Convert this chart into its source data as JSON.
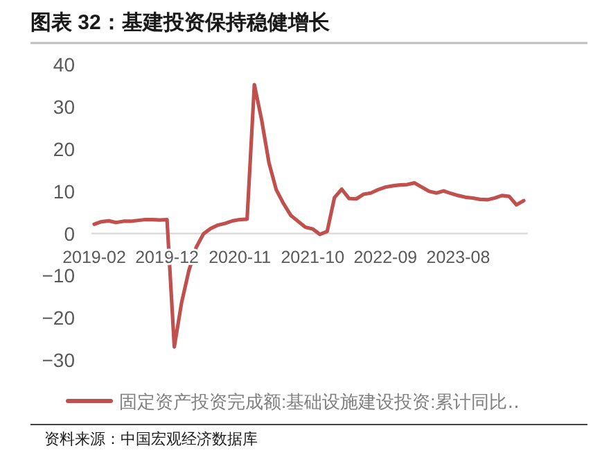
{
  "chart_data": {
    "type": "line",
    "title": "图表 32：基建投资保持稳健增长",
    "categories": [
      "2019-02",
      null,
      null,
      null,
      null,
      null,
      null,
      null,
      null,
      null,
      "2019-12",
      null,
      null,
      null,
      null,
      null,
      null,
      null,
      null,
      null,
      "2020-11",
      null,
      null,
      null,
      null,
      null,
      null,
      null,
      null,
      null,
      "2021-10",
      null,
      null,
      null,
      null,
      null,
      null,
      null,
      null,
      null,
      "2022-09",
      null,
      null,
      null,
      null,
      null,
      null,
      null,
      null,
      null,
      "2023-08",
      null,
      null,
      null,
      null,
      null,
      null,
      null,
      null,
      null
    ],
    "series": [
      {
        "name": "固定资产投资完成额:基础设施建设投资:累计同比‥",
        "color": "#c0504d",
        "values": [
          2.2,
          2.8,
          3.0,
          2.6,
          2.9,
          2.9,
          3.1,
          3.3,
          3.3,
          3.2,
          3.3,
          -26.9,
          -16.4,
          -8.8,
          -3.3,
          -0.1,
          1.2,
          2.0,
          2.4,
          3.0,
          3.3,
          3.4,
          35.3,
          26.9,
          16.8,
          10.4,
          7.1,
          4.3,
          2.9,
          1.5,
          1.1,
          -0.2,
          0.5,
          8.5,
          10.5,
          8.3,
          8.2,
          9.3,
          9.6,
          10.4,
          11.0,
          11.3,
          11.5,
          11.6,
          12.0,
          11.0,
          10.0,
          9.6,
          10.1,
          9.5,
          9.0,
          8.6,
          8.4,
          8.1,
          8.0,
          8.4,
          9.0,
          8.8,
          6.8,
          7.8
        ]
      }
    ],
    "ylim": [
      -30,
      40
    ],
    "yticks": [
      -30,
      -20,
      -10,
      0,
      10,
      20,
      30,
      40
    ],
    "legend": "bottom",
    "annotations": [
      "资料来源：中国宏观经济数据库"
    ]
  }
}
